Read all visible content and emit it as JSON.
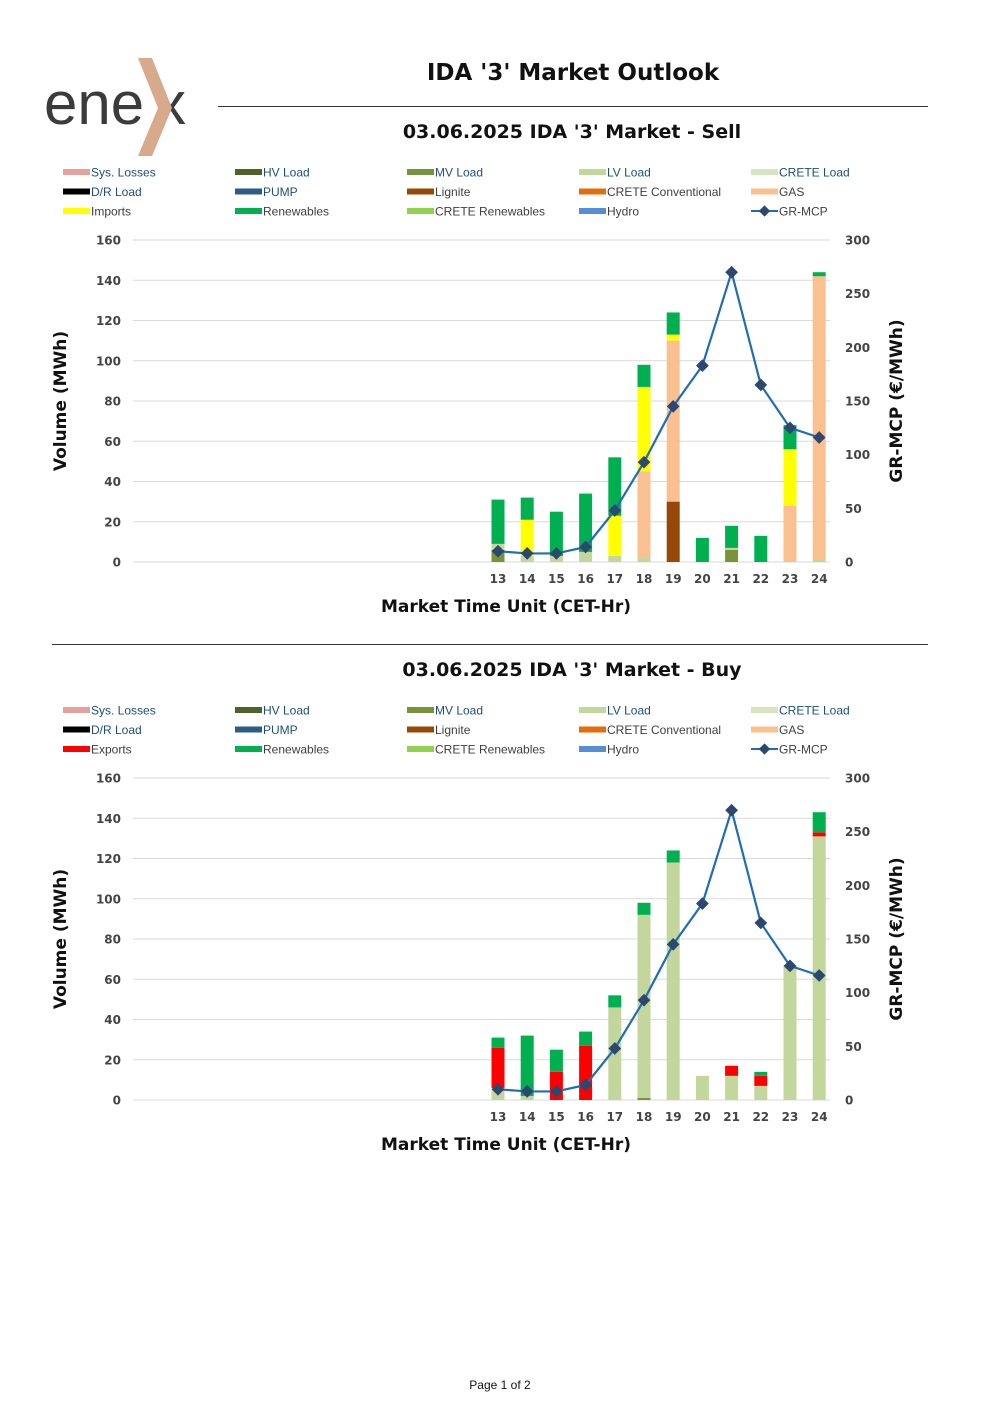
{
  "logo": {
    "text_left": "ene",
    "text_right": "x"
  },
  "page_title": "IDA '3' Market Outlook",
  "footer": "Page 1 of 2",
  "colors": {
    "Sys. Losses": "#E6A19D",
    "HV Load": "#4F6228",
    "MV Load": "#77933C",
    "LV Load": "#C3D69B",
    "CRETE Load": "#D7E4BD",
    "D/R Load": "#000000",
    "PUMP": "#2E5C8A",
    "Lignite": "#974806",
    "CRETE Conventional": "#E46C0A",
    "GAS": "#FAC090",
    "Imports": "#FFFF00",
    "Exports": "#FF0000",
    "Renewables": "#00B050",
    "CRETE Renewables": "#92D050",
    "Hydro": "#558ED5",
    "GR-MCP": "#1F6DB3",
    "GR-MCP-marker": "#2C4770"
  },
  "chart_data": [
    {
      "type": "bar",
      "title": "03.06.2025  IDA '3' Market - Sell",
      "xlabel": "Market Time Unit (CET-Hr)",
      "ylabel": "Volume (MWh)",
      "y2label": "GR-MCP (€/MWh)",
      "ylim": [
        0,
        160
      ],
      "yticks": [
        0,
        20,
        40,
        60,
        80,
        100,
        120,
        140,
        160
      ],
      "y2lim": [
        0,
        300
      ],
      "y2ticks": [
        0,
        50,
        100,
        150,
        200,
        250,
        300
      ],
      "grid": true,
      "legend": [
        "Sys. Losses",
        "HV Load",
        "MV Load",
        "LV Load",
        "CRETE Load",
        "D/R Load",
        "PUMP",
        "Lignite",
        "CRETE Conventional",
        "GAS",
        "Imports",
        "Renewables",
        "CRETE Renewables",
        "Hydro",
        "GR-MCP"
      ],
      "categories": [
        "13",
        "14",
        "15",
        "16",
        "17",
        "18",
        "19",
        "20",
        "21",
        "22",
        "23",
        "24"
      ],
      "series": [
        {
          "name": "MV Load",
          "values": [
            6,
            0,
            0,
            0,
            0,
            0,
            0,
            0,
            6,
            0,
            0,
            0
          ]
        },
        {
          "name": "LV Load",
          "values": [
            3,
            3,
            3,
            5,
            3,
            2,
            0,
            0,
            1,
            0,
            0,
            1
          ]
        },
        {
          "name": "Lignite",
          "values": [
            0,
            0,
            0,
            0,
            0,
            0,
            30,
            0,
            0,
            0,
            0,
            0
          ]
        },
        {
          "name": "GAS",
          "values": [
            0,
            0,
            0,
            0,
            0,
            43,
            80,
            0,
            0,
            0,
            28,
            141
          ]
        },
        {
          "name": "Imports",
          "values": [
            0,
            18,
            0,
            0,
            20,
            42,
            3,
            0,
            0,
            0,
            28,
            0
          ]
        },
        {
          "name": "Renewables",
          "values": [
            22,
            11,
            22,
            29,
            29,
            11,
            11,
            12,
            11,
            13,
            12,
            2
          ]
        }
      ],
      "mcp_name": "GR-MCP",
      "mcp": [
        10,
        8,
        8,
        14,
        48,
        93,
        145,
        183,
        270,
        165,
        125,
        116
      ]
    },
    {
      "type": "bar",
      "title": "03.06.2025  IDA '3' Market - Buy",
      "xlabel": "Market Time Unit (CET-Hr)",
      "ylabel": "Volume (MWh)",
      "y2label": "GR-MCP (€/MWh)",
      "ylim": [
        0,
        160
      ],
      "yticks": [
        0,
        20,
        40,
        60,
        80,
        100,
        120,
        140,
        160
      ],
      "y2lim": [
        0,
        300
      ],
      "y2ticks": [
        0,
        50,
        100,
        150,
        200,
        250,
        300
      ],
      "grid": true,
      "legend": [
        "Sys. Losses",
        "HV Load",
        "MV Load",
        "LV Load",
        "CRETE Load",
        "D/R Load",
        "PUMP",
        "Lignite",
        "CRETE Conventional",
        "GAS",
        "Exports",
        "Renewables",
        "CRETE Renewables",
        "Hydro",
        "GR-MCP"
      ],
      "categories": [
        "13",
        "14",
        "15",
        "16",
        "17",
        "18",
        "19",
        "20",
        "21",
        "22",
        "23",
        "24"
      ],
      "series": [
        {
          "name": "MV Load",
          "values": [
            0,
            0,
            0,
            0,
            0,
            1,
            0,
            0,
            0,
            0,
            0,
            0
          ]
        },
        {
          "name": "LV Load",
          "values": [
            6,
            2,
            0,
            0,
            46,
            91,
            118,
            12,
            12,
            7,
            67,
            131
          ]
        },
        {
          "name": "Exports",
          "values": [
            20,
            0,
            14,
            27,
            0,
            0,
            0,
            0,
            5,
            5,
            0,
            2
          ]
        },
        {
          "name": "Renewables",
          "values": [
            5,
            30,
            11,
            7,
            6,
            6,
            6,
            0,
            0,
            2,
            0,
            10
          ]
        }
      ],
      "mcp_name": "GR-MCP",
      "mcp": [
        10,
        8,
        8,
        14,
        48,
        93,
        145,
        183,
        270,
        165,
        125,
        116
      ]
    }
  ]
}
